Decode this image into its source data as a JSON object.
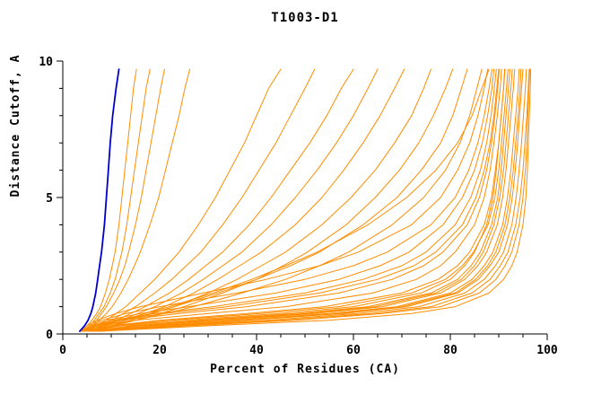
{
  "chart_data": {
    "type": "line",
    "title": "T1003-D1",
    "xlabel": "Percent of Residues (CA)",
    "ylabel": "Distance Cutoff, A",
    "xlim": [
      0,
      100
    ],
    "ylim": [
      0,
      10
    ],
    "x_major_ticks": [
      0,
      20,
      40,
      60,
      80,
      100
    ],
    "x_minor_step": 5,
    "y_major_ticks": [
      0,
      5,
      10
    ],
    "y_minor_step": 1,
    "grid": false,
    "legend": "none",
    "axes_style": "L-shape, black, ticks outward, bold mono labels",
    "description": "Cumulative curves: percent of CA residues (x) within distance cutoff (y) for many models; orange = predicted models, blue = highlighted model",
    "colors": {
      "model": "#ff8c00",
      "highlight": "#0000cd",
      "axis": "#000000",
      "background": "#ffffff"
    },
    "cutoffs": [
      0.1,
      0.3,
      0.5,
      0.75,
      1,
      1.5,
      2,
      2.5,
      3,
      4,
      5,
      6,
      7,
      8,
      9,
      9.7
    ],
    "series": [
      {
        "name": "orange-01",
        "color": "#ff8c00",
        "width": 1,
        "percents": [
          4,
          5,
          6,
          7,
          7.8,
          8.8,
          9.6,
          10.2,
          10.8,
          11.6,
          12.2,
          12.8,
          13.4,
          14,
          14.6,
          15.2
        ]
      },
      {
        "name": "orange-02",
        "color": "#ff8c00",
        "width": 1,
        "percents": [
          4.5,
          5.5,
          6.5,
          7.5,
          8.5,
          9.8,
          10.8,
          11.5,
          12.2,
          13.2,
          14,
          14.8,
          15.6,
          16.4,
          17.2,
          18
        ]
      },
      {
        "name": "orange-03",
        "color": "#ff8c00",
        "width": 1,
        "percents": [
          5,
          6,
          7,
          8,
          9,
          10.5,
          11.8,
          12.8,
          13.6,
          15,
          16.2,
          17.2,
          18.2,
          19.2,
          20.2,
          21
        ]
      },
      {
        "name": "orange-04",
        "color": "#ff8c00",
        "width": 1,
        "percents": [
          5,
          6.2,
          7.5,
          9,
          10.2,
          12,
          13.5,
          14.8,
          16,
          18,
          19.8,
          21.2,
          22.6,
          24,
          25.2,
          26.2
        ]
      },
      {
        "name": "orange-05",
        "color": "#ff8c00",
        "width": 1,
        "percents": [
          5,
          7,
          9,
          11,
          13,
          16,
          19,
          21.5,
          24,
          28,
          31.5,
          34.5,
          37.5,
          40,
          42.5,
          45
        ]
      },
      {
        "name": "orange-06",
        "color": "#ff8c00",
        "width": 1,
        "percents": [
          5.5,
          7.5,
          10,
          12.5,
          15,
          19,
          22.5,
          25.5,
          28.5,
          33,
          37,
          40.5,
          44,
          47,
          50,
          52
        ]
      },
      {
        "name": "orange-07",
        "color": "#ff8c00",
        "width": 1,
        "percents": [
          6,
          8,
          11,
          14,
          17,
          22,
          26,
          29.5,
          33,
          38.5,
          43,
          47,
          51,
          54.5,
          57.5,
          60
        ]
      },
      {
        "name": "orange-08",
        "color": "#ff8c00",
        "width": 1,
        "percents": [
          6,
          8.5,
          12,
          15.5,
          19,
          24.5,
          29,
          33,
          37,
          43,
          48,
          52.5,
          56.5,
          60,
          63,
          65
        ]
      },
      {
        "name": "orange-09",
        "color": "#ff8c00",
        "width": 1,
        "percents": [
          6.5,
          9,
          13,
          17,
          21,
          27,
          32,
          36.5,
          41,
          48,
          53.5,
          58,
          62,
          65.5,
          68.5,
          70.5
        ]
      },
      {
        "name": "orange-10",
        "color": "#ff8c00",
        "width": 1,
        "percents": [
          7,
          10,
          14,
          18.5,
          23,
          30,
          36,
          41,
          46,
          53.5,
          59.5,
          64.5,
          68.5,
          72,
          74.5,
          76
        ]
      },
      {
        "name": "orange-11",
        "color": "#ff8c00",
        "width": 1,
        "percents": [
          7,
          10.5,
          15,
          20,
          25,
          33,
          40,
          45.5,
          50.5,
          58.5,
          64.5,
          69.5,
          73.5,
          76.5,
          79,
          80.5
        ]
      },
      {
        "name": "orange-12",
        "color": "#ff8c00",
        "width": 1,
        "percents": [
          6,
          9,
          13,
          18,
          23,
          32,
          40,
          47,
          53,
          62,
          69,
          74,
          78,
          80.5,
          82.3,
          83.5
        ]
      },
      {
        "name": "orange-13",
        "color": "#ff8c00",
        "width": 1,
        "percents": [
          6.5,
          10,
          15,
          21,
          27,
          37,
          46,
          53,
          59,
          68,
          74.5,
          79,
          82,
          84,
          85.5,
          86.5
        ]
      },
      {
        "name": "orange-14",
        "color": "#ff8c00",
        "width": 1,
        "percents": [
          5,
          8,
          12,
          17,
          22,
          31,
          39,
          46,
          52.5,
          63,
          71,
          77,
          81.5,
          84.5,
          86.5,
          88
        ]
      },
      {
        "name": "orange-15",
        "color": "#ff8c00",
        "width": 1,
        "percents": [
          5,
          12,
          25,
          45,
          60,
          74,
          80,
          83,
          85,
          87.5,
          88.8,
          89.5,
          90,
          90.5,
          91,
          91.3
        ]
      },
      {
        "name": "orange-16",
        "color": "#ff8c00",
        "width": 1,
        "percents": [
          5.5,
          14,
          28,
          48,
          63,
          76,
          81.5,
          84.3,
          86.2,
          88.5,
          89.8,
          90.5,
          91,
          91.5,
          92,
          92.3
        ]
      },
      {
        "name": "orange-17",
        "color": "#ff8c00",
        "width": 1,
        "percents": [
          6,
          16,
          32,
          52,
          66,
          78,
          83,
          85.7,
          87.5,
          89.7,
          90.8,
          91.5,
          92,
          92.5,
          93,
          93.3
        ]
      },
      {
        "name": "orange-18",
        "color": "#ff8c00",
        "width": 1,
        "percents": [
          6,
          18,
          35,
          55,
          69,
          80,
          84.5,
          87,
          88.8,
          90.8,
          91.8,
          92.5,
          93,
          93.5,
          94,
          94.2
        ]
      },
      {
        "name": "orange-19",
        "color": "#ff8c00",
        "width": 1,
        "percents": [
          6.5,
          20,
          38,
          58,
          71,
          81.5,
          85.8,
          88.2,
          90,
          91.8,
          92.8,
          93.4,
          93.9,
          94.3,
          94.7,
          95
        ]
      },
      {
        "name": "orange-20",
        "color": "#ff8c00",
        "width": 1,
        "percents": [
          7,
          22,
          42,
          61,
          73.5,
          83,
          87,
          89.3,
          91,
          92.7,
          93.6,
          94.2,
          94.7,
          95.1,
          95.5,
          95.7
        ]
      },
      {
        "name": "orange-21",
        "color": "#ff8c00",
        "width": 1,
        "percents": [
          7,
          24,
          45,
          64,
          76,
          84.5,
          88.2,
          90.3,
          91.9,
          93.5,
          94.4,
          95,
          95.4,
          95.8,
          96.1,
          96.3
        ]
      },
      {
        "name": "orange-22",
        "color": "#ff8c00",
        "width": 1,
        "percents": [
          5,
          10,
          20,
          38,
          54,
          70,
          77.5,
          81.5,
          84,
          87,
          88.5,
          89.3,
          90,
          90.5,
          91,
          91.2
        ]
      },
      {
        "name": "orange-23",
        "color": "#ff8c00",
        "width": 1,
        "percents": [
          4.5,
          8,
          15,
          30,
          46,
          64,
          73,
          78,
          81,
          85,
          87,
          88.2,
          89,
          89.7,
          90.3,
          90.6
        ]
      },
      {
        "name": "orange-24",
        "color": "#ff8c00",
        "width": 1,
        "percents": [
          4.5,
          7,
          12,
          24,
          38,
          57,
          68,
          74.5,
          78.5,
          83.5,
          86,
          87.5,
          88.5,
          89.2,
          89.8,
          90.1
        ]
      },
      {
        "name": "orange-25",
        "color": "#ff8c00",
        "width": 1,
        "percents": [
          4,
          6.5,
          10,
          19,
          31,
          50,
          62,
          70,
          75,
          81,
          84.2,
          86.2,
          87.5,
          88.4,
          89.1,
          89.5
        ]
      },
      {
        "name": "orange-26",
        "color": "#ff8c00",
        "width": 1,
        "percents": [
          4,
          6,
          9,
          16,
          26,
          44,
          57,
          65.5,
          71.5,
          78.5,
          82.5,
          85,
          86.6,
          87.7,
          88.6,
          89
        ]
      },
      {
        "name": "orange-27",
        "color": "#ff8c00",
        "width": 1,
        "percents": [
          4,
          5.5,
          8,
          13,
          20,
          36,
          50,
          60,
          67,
          76,
          81,
          83.8,
          85.7,
          87,
          88,
          88.6
        ]
      },
      {
        "name": "orange-28",
        "color": "#ff8c00",
        "width": 1,
        "percents": [
          3.8,
          5,
          7,
          11,
          16,
          29,
          42,
          53,
          61,
          72,
          78,
          81.5,
          84,
          85.7,
          87,
          87.7
        ]
      },
      {
        "name": "orange-29",
        "color": "#ff8c00",
        "width": 1,
        "percents": [
          8,
          30,
          55,
          72,
          81,
          88,
          91,
          92.7,
          93.8,
          95,
          95.6,
          95.9,
          96.1,
          96.3,
          96.5,
          96.6
        ]
      },
      {
        "name": "orange-30",
        "color": "#ff8c00",
        "width": 1,
        "percents": [
          6,
          15,
          30,
          50,
          64.5,
          77,
          82.3,
          85,
          86.8,
          89,
          90.2,
          91,
          91.5,
          92,
          92.5,
          92.8
        ]
      },
      {
        "name": "orange-31",
        "color": "#ff8c00",
        "width": 1,
        "percents": [
          6.5,
          19,
          37,
          57,
          70,
          81,
          85.2,
          87.7,
          89.4,
          91.3,
          92.3,
          93,
          93.5,
          94,
          94.4,
          94.6
        ]
      },
      {
        "name": "orange-32",
        "color": "#ff8c00",
        "width": 1,
        "percents": [
          5.5,
          11,
          22,
          41,
          57,
          72,
          79,
          82.5,
          84.8,
          87.8,
          89.2,
          90,
          90.6,
          91.1,
          91.6,
          91.9
        ]
      },
      {
        "name": "orange-33",
        "color": "#ff8c00",
        "width": 1,
        "percents": [
          7.5,
          26,
          48,
          66,
          78,
          86,
          89.4,
          91.3,
          92.7,
          94.2,
          95,
          95.5,
          95.8,
          96,
          96.2,
          96.4
        ]
      },
      {
        "name": "orange-34",
        "color": "#ff8c00",
        "width": 1,
        "percents": [
          4.2,
          6.8,
          11,
          21,
          34,
          53,
          65,
          72.5,
          77,
          82.5,
          85.3,
          87,
          88.2,
          89,
          89.6,
          90
        ]
      },
      {
        "name": "blue-highlight",
        "color": "#0000cd",
        "width": 1.8,
        "percents": [
          3.5,
          4.5,
          5.2,
          5.8,
          6.2,
          6.8,
          7.2,
          7.6,
          8,
          8.6,
          9,
          9.4,
          9.8,
          10.3,
          11,
          11.6
        ]
      }
    ]
  }
}
